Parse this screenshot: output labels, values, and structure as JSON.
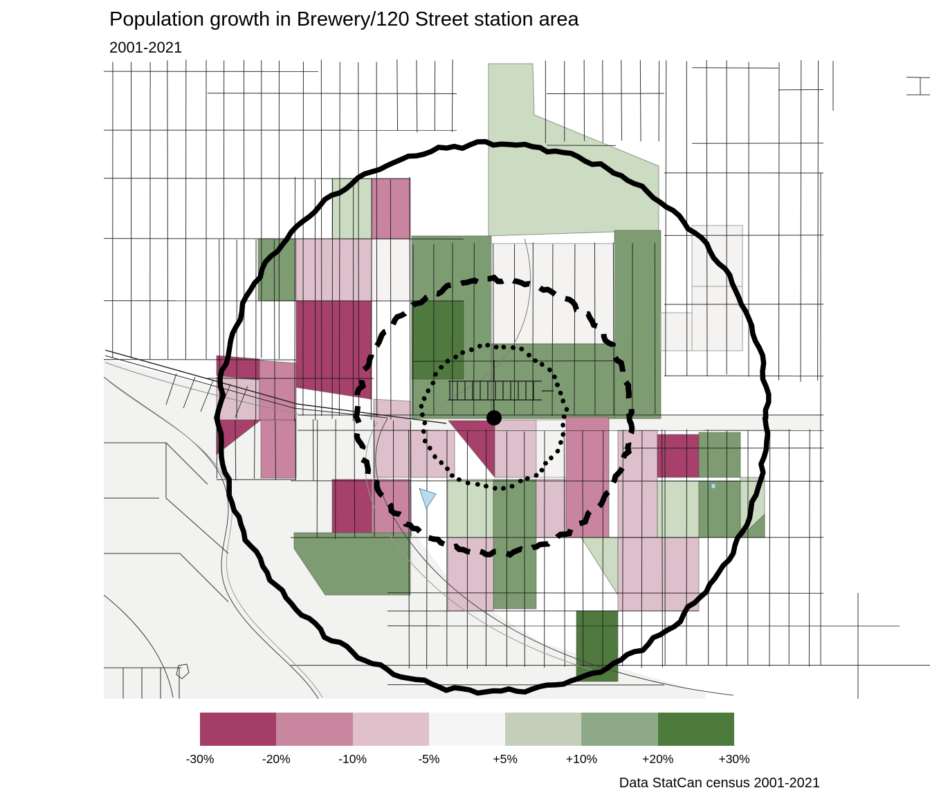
{
  "header": {
    "title": "Population growth in Brewery/120 Street station area",
    "subtitle": "2001-2021"
  },
  "caption": "Data StatCan census 2001-2021",
  "legend": {
    "labels": [
      "-30%",
      "-20%",
      "-10%",
      "-5%",
      "+5%",
      "+10%",
      "+20%",
      "+30%"
    ],
    "colors": [
      "#a43e68",
      "#c9869f",
      "#dfc0cb",
      "#f6f5f5",
      "#c3cfbb",
      "#8ea987",
      "#4d7b3b"
    ]
  },
  "map": {
    "palette": {
      "neg3": "#a7416b",
      "neg2": "#c9859f",
      "neg1": "#ddc0cb",
      "neutral": "#f4f3f2",
      "pos1": "#cbdcc2",
      "pos2": "#7e9c72",
      "pos3": "#50793f"
    },
    "water_color": "#badbec",
    "valley_color": "#f2f2f0",
    "corridor_color": "#f3f3f1",
    "ring_color": "#000000",
    "station_color": "#000000"
  }
}
